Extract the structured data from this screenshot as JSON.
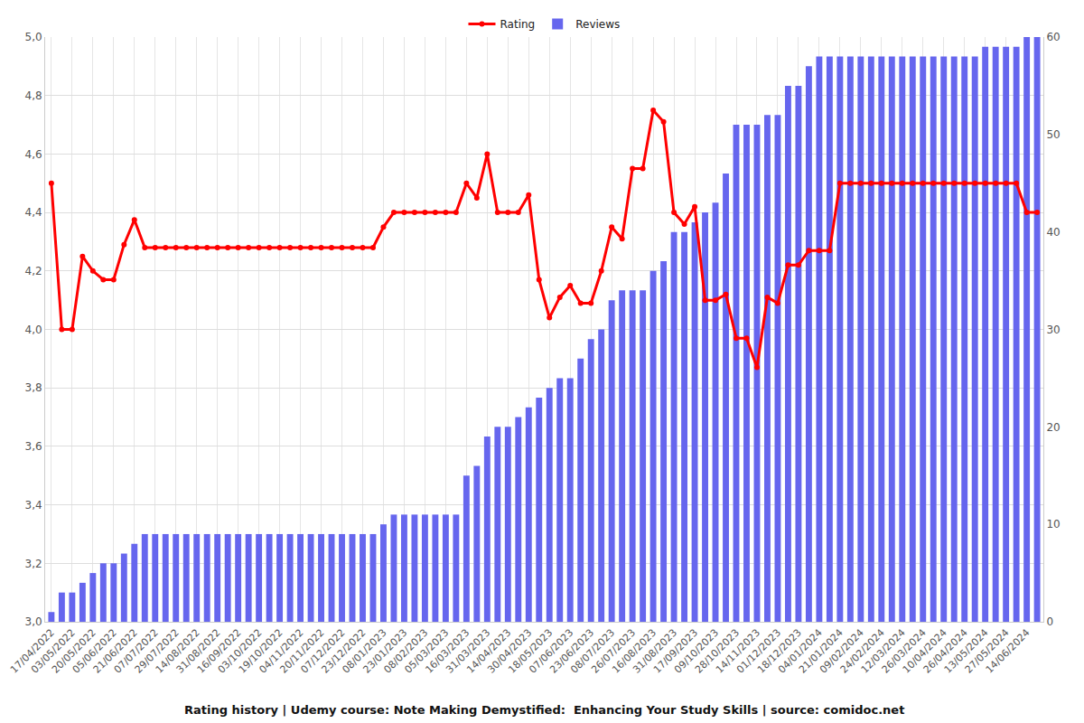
{
  "chart_data": {
    "type": "bar_line",
    "title": "Rating history | Udemy course: Note Making Demystified:  Enhancing Your Study Skills | source: comidoc.net",
    "categories": [
      "17/04/2022",
      null,
      "03/05/2022",
      null,
      "20/05/2022",
      null,
      "05/06/2022",
      null,
      "21/06/2022",
      null,
      "07/07/2022",
      null,
      "29/07/2022",
      null,
      "14/08/2022",
      null,
      "31/08/2022",
      null,
      "16/09/2022",
      null,
      "03/10/2022",
      null,
      "19/10/2022",
      null,
      "04/11/2022",
      null,
      "20/11/2022",
      null,
      "07/12/2022",
      null,
      "23/12/2022",
      null,
      "08/01/2023",
      null,
      "23/01/2023",
      null,
      "08/02/2023",
      null,
      "05/03/2023",
      null,
      "16/03/2023",
      null,
      "31/03/2023",
      null,
      "14/04/2023",
      null,
      "30/04/2023",
      null,
      "18/05/2023",
      null,
      "07/06/2023",
      null,
      "23/06/2023",
      null,
      "08/07/2023",
      null,
      "26/07/2023",
      null,
      "16/08/2023",
      null,
      "31/08/2023",
      null,
      "17/09/2023",
      null,
      "09/10/2023",
      null,
      "28/10/2023",
      null,
      "14/11/2023",
      null,
      "01/12/2023",
      null,
      "18/12/2023",
      null,
      "04/01/2024",
      null,
      "21/01/2024",
      null,
      "09/02/2024",
      null,
      "24/02/2024",
      null,
      "12/03/2024",
      null,
      "26/03/2024",
      null,
      "10/04/2024",
      null,
      "26/04/2024",
      null,
      "13/05/2024",
      null,
      "27/05/2024",
      null,
      "14/06/2024",
      null
    ],
    "series": [
      {
        "name": "Reviews",
        "type": "bar",
        "color": "#6666ee",
        "axis": "y2",
        "values": [
          1,
          3,
          3,
          4,
          5,
          6,
          6,
          7,
          8,
          9,
          9,
          9,
          9,
          9,
          9,
          9,
          9,
          9,
          9,
          9,
          9,
          9,
          9,
          9,
          9,
          9,
          9,
          9,
          9,
          9,
          9,
          9,
          10,
          11,
          11,
          11,
          11,
          11,
          11,
          11,
          15,
          16,
          19,
          20,
          20,
          21,
          22,
          23,
          24,
          25,
          25,
          27,
          29,
          30,
          33,
          34,
          34,
          34,
          36,
          37,
          40,
          40,
          41,
          42,
          43,
          46,
          51,
          51,
          51,
          52,
          52,
          55,
          55,
          57,
          58,
          58,
          58,
          58,
          58,
          58,
          58,
          58,
          58,
          58,
          58,
          58,
          58,
          58,
          58,
          58,
          59,
          59,
          59,
          59,
          60,
          60
        ]
      },
      {
        "name": "Rating",
        "type": "line",
        "color": "#ff0000",
        "marker": "circle",
        "values": [
          4.5,
          4.0,
          4.0,
          4.25,
          4.2,
          4.17,
          4.17,
          4.29,
          4.375,
          4.28,
          4.28,
          4.28,
          4.28,
          4.28,
          4.28,
          4.28,
          4.28,
          4.28,
          4.28,
          4.28,
          4.28,
          4.28,
          4.28,
          4.28,
          4.28,
          4.28,
          4.28,
          4.28,
          4.28,
          4.28,
          4.28,
          4.28,
          4.35,
          4.4,
          4.4,
          4.4,
          4.4,
          4.4,
          4.4,
          4.4,
          4.5,
          4.45,
          4.6,
          4.4,
          4.4,
          4.4,
          4.46,
          4.17,
          4.04,
          4.11,
          4.15,
          4.09,
          4.09,
          4.2,
          4.35,
          4.31,
          4.55,
          4.55,
          4.75,
          4.71,
          4.4,
          4.36,
          4.42,
          4.1,
          4.1,
          4.12,
          3.97,
          3.97,
          3.87,
          4.11,
          4.09,
          4.22,
          4.22,
          4.27,
          4.27,
          4.27,
          4.5,
          4.5,
          4.5,
          4.5,
          4.5,
          4.5,
          4.5,
          4.5,
          4.5,
          4.5,
          4.5,
          4.5,
          4.5,
          4.5,
          4.5,
          4.5,
          4.5,
          4.5,
          4.4,
          4.4
        ]
      }
    ],
    "ylim": [
      3.0,
      5.0
    ],
    "yticks": [
      {
        "value": 3.0,
        "label": "3,0"
      },
      {
        "value": 3.2,
        "label": "3,2"
      },
      {
        "value": 3.4,
        "label": "3,4"
      },
      {
        "value": 3.6,
        "label": "3,6"
      },
      {
        "value": 3.8,
        "label": "3,8"
      },
      {
        "value": 4.0,
        "label": "4,0"
      },
      {
        "value": 4.2,
        "label": "4,2"
      },
      {
        "value": 4.4,
        "label": "4,4"
      },
      {
        "value": 4.6,
        "label": "4,6"
      },
      {
        "value": 4.8,
        "label": "4,8"
      },
      {
        "value": 5.0,
        "label": "5,0"
      }
    ],
    "y2lim": [
      0,
      60
    ],
    "y2ticks": [
      0,
      10,
      20,
      30,
      40,
      50,
      60
    ],
    "grid": true,
    "legend": "top"
  }
}
